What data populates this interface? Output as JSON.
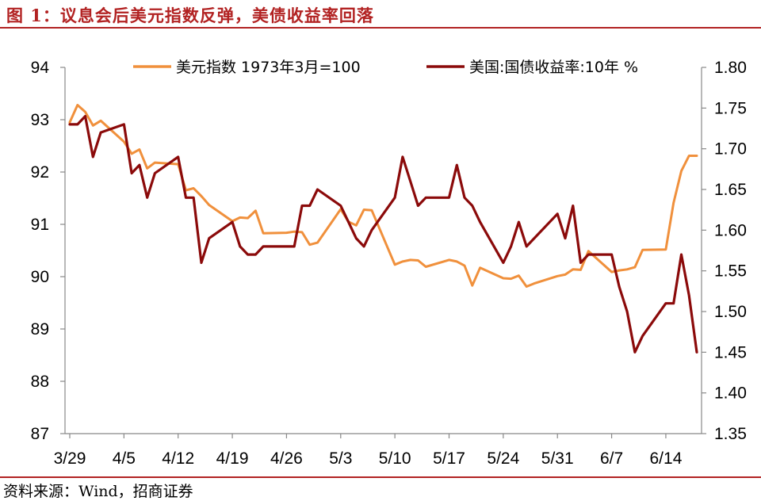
{
  "title": "图 1：议息会后美元指数反弹，美债收益率回落",
  "source": "资料来源：Wind，招商证券",
  "colors": {
    "accent": "#b22222",
    "usd_index": "#f0903c",
    "treasury_yield": "#8b0a0a"
  },
  "chart_data": {
    "type": "line",
    "grid": false,
    "legend_position": "top",
    "x_tick_labels": [
      "3/29",
      "4/5",
      "4/12",
      "4/19",
      "4/26",
      "5/3",
      "5/10",
      "5/17",
      "5/24",
      "5/31",
      "6/7",
      "6/14"
    ],
    "y_left": {
      "ylim": [
        87,
        94
      ],
      "ticks": [
        "87",
        "88",
        "89",
        "90",
        "91",
        "92",
        "93",
        "94"
      ]
    },
    "y_right": {
      "ylim": [
        1.35,
        1.8
      ],
      "ticks": [
        "1.35",
        "1.40",
        "1.45",
        "1.50",
        "1.55",
        "1.60",
        "1.65",
        "1.70",
        "1.75",
        "1.80"
      ]
    },
    "series": [
      {
        "name": "美元指数 1973年3月=100",
        "axis": "left",
        "x": [
          "3/29",
          "3/30",
          "3/31",
          "4/1",
          "4/2",
          "4/5",
          "4/6",
          "4/7",
          "4/8",
          "4/9",
          "4/12",
          "4/13",
          "4/14",
          "4/15",
          "4/16",
          "4/19",
          "4/20",
          "4/21",
          "4/22",
          "4/23",
          "4/26",
          "4/27",
          "4/28",
          "4/29",
          "4/30",
          "5/3",
          "5/4",
          "5/5",
          "5/6",
          "5/7",
          "5/10",
          "5/11",
          "5/12",
          "5/13",
          "5/14",
          "5/17",
          "5/18",
          "5/19",
          "5/20",
          "5/21",
          "5/24",
          "5/25",
          "5/26",
          "5/27",
          "5/28",
          "5/31",
          "6/1",
          "6/2",
          "6/3",
          "6/4",
          "6/7",
          "6/8",
          "6/9",
          "6/10",
          "6/11",
          "6/14",
          "6/15",
          "6/16",
          "6/17",
          "6/18"
        ],
        "values": [
          92.95,
          93.28,
          93.15,
          92.89,
          92.98,
          92.58,
          92.35,
          92.43,
          92.07,
          92.18,
          92.15,
          91.65,
          91.69,
          91.54,
          91.37,
          91.06,
          91.13,
          91.12,
          91.26,
          90.83,
          90.84,
          90.86,
          90.85,
          90.61,
          90.65,
          91.29,
          91.05,
          90.98,
          91.28,
          91.27,
          90.23,
          90.29,
          90.32,
          90.31,
          90.19,
          90.32,
          90.29,
          90.21,
          89.83,
          90.17,
          89.97,
          89.96,
          90.02,
          89.81,
          89.87,
          90.01,
          90.04,
          90.14,
          90.13,
          90.49,
          90.09,
          90.12,
          90.14,
          90.18,
          90.51,
          90.52,
          91.41,
          92.02,
          92.31,
          92.31
        ]
      },
      {
        "name": "美国:国债收益率:10年 %",
        "axis": "right",
        "x": [
          "3/29",
          "3/30",
          "3/31",
          "4/1",
          "4/2",
          "4/5",
          "4/6",
          "4/7",
          "4/8",
          "4/9",
          "4/12",
          "4/13",
          "4/14",
          "4/15",
          "4/16",
          "4/19",
          "4/20",
          "4/21",
          "4/22",
          "4/23",
          "4/26",
          "4/27",
          "4/28",
          "4/29",
          "4/30",
          "5/3",
          "5/4",
          "5/5",
          "5/6",
          "5/7",
          "5/10",
          "5/11",
          "5/12",
          "5/13",
          "5/14",
          "5/17",
          "5/18",
          "5/19",
          "5/20",
          "5/21",
          "5/24",
          "5/25",
          "5/26",
          "5/27",
          "5/28",
          "5/31",
          "6/1",
          "6/2",
          "6/3",
          "6/4",
          "6/7",
          "6/8",
          "6/9",
          "6/10",
          "6/11",
          "6/14",
          "6/15",
          "6/16",
          "6/17",
          "6/18"
        ],
        "values": [
          1.73,
          1.73,
          1.74,
          1.69,
          1.72,
          1.73,
          1.67,
          1.68,
          1.64,
          1.67,
          1.69,
          1.64,
          1.64,
          1.56,
          1.59,
          1.61,
          1.58,
          1.57,
          1.57,
          1.58,
          1.58,
          1.58,
          1.63,
          1.63,
          1.65,
          1.63,
          1.61,
          1.59,
          1.58,
          1.6,
          1.64,
          1.69,
          1.66,
          1.63,
          1.64,
          1.64,
          1.68,
          1.64,
          1.63,
          1.61,
          1.56,
          1.58,
          1.61,
          1.58,
          1.59,
          1.62,
          1.59,
          1.63,
          1.56,
          1.57,
          1.57,
          1.53,
          1.5,
          1.45,
          1.47,
          1.51,
          1.51,
          1.57,
          1.52,
          1.45
        ]
      }
    ]
  }
}
